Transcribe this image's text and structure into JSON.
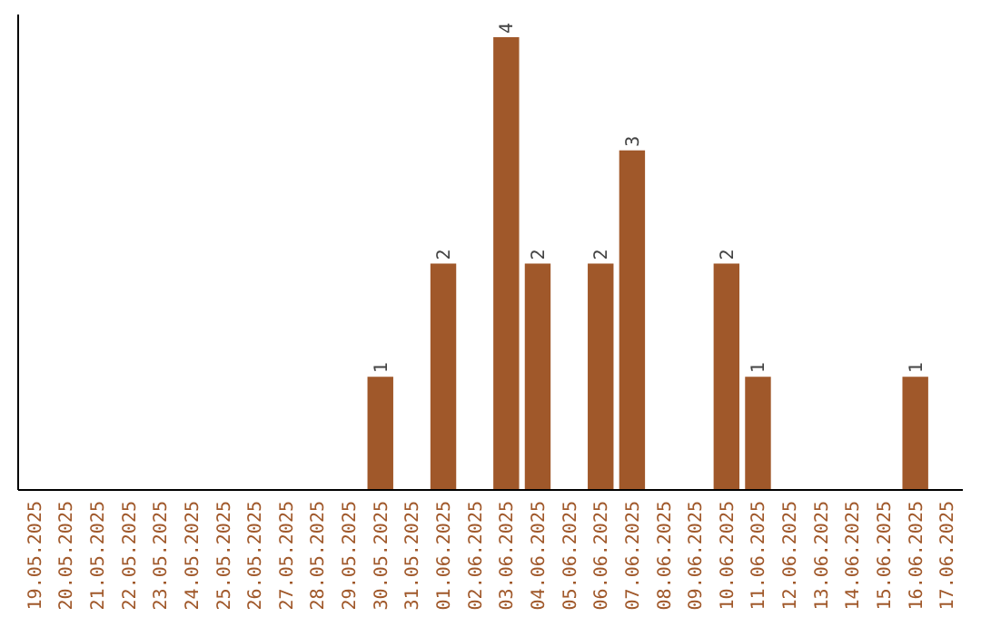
{
  "chart_data": {
    "type": "bar",
    "categories": [
      "19.05.2025",
      "20.05.2025",
      "21.05.2025",
      "22.05.2025",
      "23.05.2025",
      "24.05.2025",
      "25.05.2025",
      "26.05.2025",
      "27.05.2025",
      "28.05.2025",
      "29.05.2025",
      "30.05.2025",
      "31.05.2025",
      "01.06.2025",
      "02.06.2025",
      "03.06.2025",
      "04.06.2025",
      "05.06.2025",
      "06.06.2025",
      "07.06.2025",
      "08.06.2025",
      "09.06.2025",
      "10.06.2025",
      "11.06.2025",
      "12.06.2025",
      "13.06.2025",
      "14.06.2025",
      "15.06.2025",
      "16.06.2025",
      "17.06.2025"
    ],
    "values": [
      0,
      0,
      0,
      0,
      0,
      0,
      0,
      0,
      0,
      0,
      0,
      1,
      0,
      2,
      0,
      4,
      2,
      0,
      2,
      3,
      0,
      0,
      2,
      1,
      0,
      0,
      0,
      0,
      1,
      0
    ],
    "value_labels": [
      null,
      null,
      null,
      null,
      null,
      null,
      null,
      null,
      null,
      null,
      null,
      "1",
      null,
      "2",
      null,
      "4",
      "2",
      null,
      "2",
      "3",
      null,
      null,
      "2",
      "1",
      null,
      null,
      null,
      null,
      "1",
      null
    ],
    "color": "#a0582a"
  }
}
